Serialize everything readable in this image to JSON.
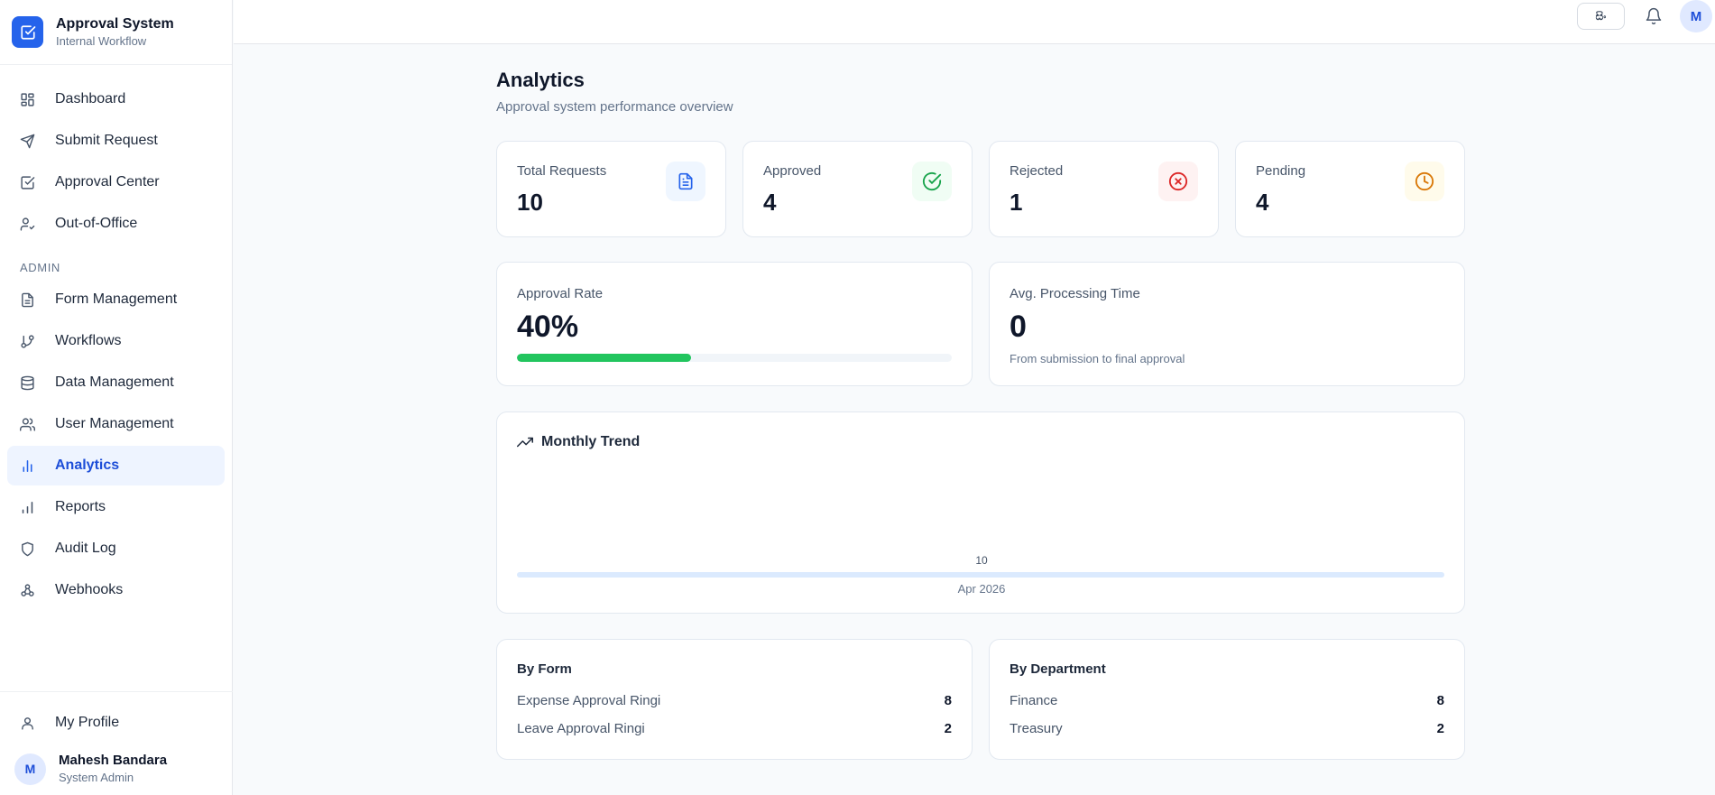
{
  "brand": {
    "title": "Approval System",
    "subtitle": "Internal Workflow"
  },
  "nav": {
    "main": [
      {
        "label": "Dashboard",
        "icon": "dashboard-grid-icon"
      },
      {
        "label": "Submit Request",
        "icon": "send-icon"
      },
      {
        "label": "Approval Center",
        "icon": "check-square-icon"
      },
      {
        "label": "Out-of-Office",
        "icon": "user-away-icon"
      }
    ],
    "admin_section": "ADMIN",
    "admin": [
      {
        "label": "Form Management",
        "icon": "document-icon"
      },
      {
        "label": "Workflows",
        "icon": "git-branch-icon"
      },
      {
        "label": "Data Management",
        "icon": "database-icon"
      },
      {
        "label": "User Management",
        "icon": "users-icon"
      },
      {
        "label": "Analytics",
        "icon": "bar-chart-icon",
        "active": true
      },
      {
        "label": "Reports",
        "icon": "signal-bars-icon"
      },
      {
        "label": "Audit Log",
        "icon": "shield-icon"
      },
      {
        "label": "Webhooks",
        "icon": "webhook-icon"
      }
    ],
    "profile": {
      "label": "My Profile",
      "icon": "user-icon"
    }
  },
  "user": {
    "initial": "M",
    "name": "Mahesh Bandara",
    "role": "System Admin"
  },
  "topbar": {
    "language": "සිං",
    "avatar_initial": "M"
  },
  "page": {
    "title": "Analytics",
    "subtitle": "Approval system performance overview"
  },
  "stats": [
    {
      "label": "Total Requests",
      "value": "10",
      "icon": "file-text-icon",
      "color": "#2563eb",
      "bg": "#eff6ff"
    },
    {
      "label": "Approved",
      "value": "4",
      "icon": "check-circle-icon",
      "color": "#16a34a",
      "bg": "#f0fdf4"
    },
    {
      "label": "Rejected",
      "value": "1",
      "icon": "x-circle-icon",
      "color": "#dc2626",
      "bg": "#fef2f2"
    },
    {
      "label": "Pending",
      "value": "4",
      "icon": "clock-icon",
      "color": "#d97706",
      "bg": "#fffbeb"
    }
  ],
  "approval_rate": {
    "label": "Approval Rate",
    "value": "40%",
    "fraction": 0.4
  },
  "processing_time": {
    "label": "Avg. Processing Time",
    "value": "0",
    "note": "From submission to final approval"
  },
  "trend": {
    "title": "Monthly Trend",
    "value": "10",
    "month": "Apr 2026"
  },
  "by_form": {
    "title": "By Form",
    "rows": [
      {
        "name": "Expense Approval Ringi",
        "count": "8"
      },
      {
        "name": "Leave Approval Ringi",
        "count": "2"
      }
    ]
  },
  "by_department": {
    "title": "By Department",
    "rows": [
      {
        "name": "Finance",
        "count": "8"
      },
      {
        "name": "Treasury",
        "count": "2"
      }
    ]
  }
}
